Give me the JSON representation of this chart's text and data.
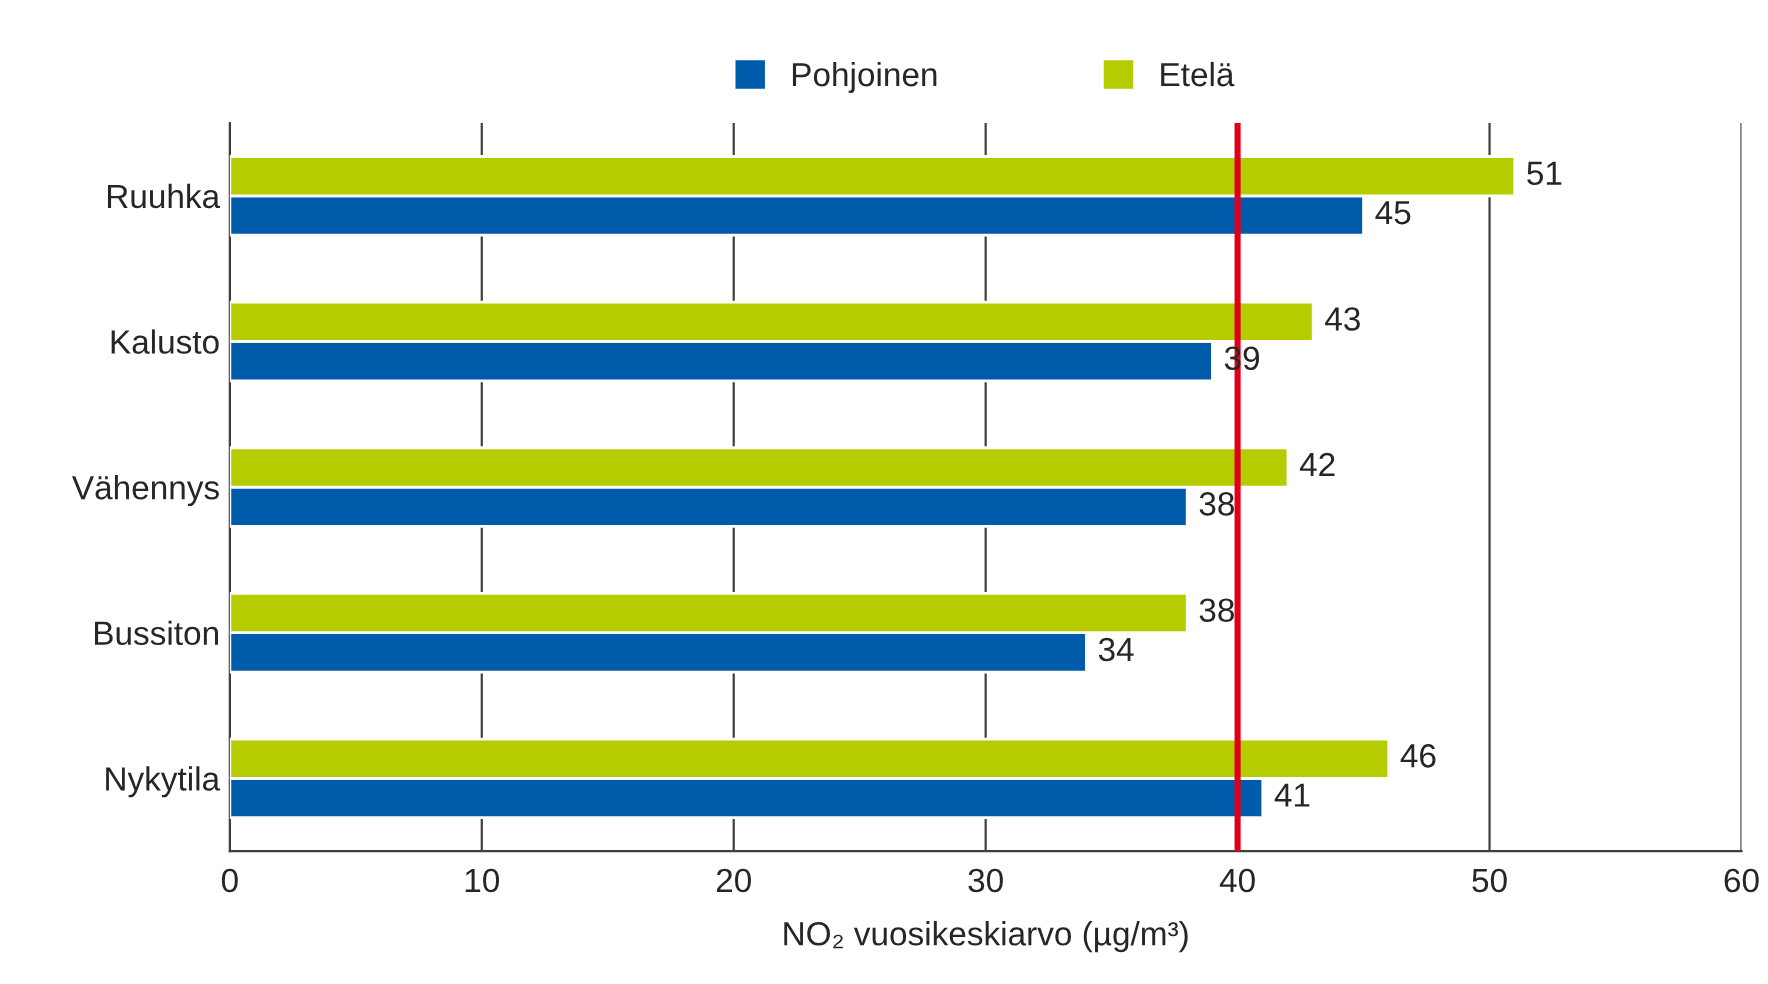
{
  "chart_data": {
    "type": "bar",
    "orientation": "horizontal",
    "xlabel": "NO₂ vuosikeskiarvo (µg/m³)",
    "categories": [
      "Ruuhka",
      "Kalusto",
      "Vähennys",
      "Bussiton",
      "Nykytila"
    ],
    "series": [
      {
        "name": "Pohjoinen",
        "color": "#005baa",
        "values": [
          45,
          39,
          38,
          34,
          41
        ]
      },
      {
        "name": "Etelä",
        "color": "#b5cc00",
        "values": [
          51,
          43,
          42,
          38,
          46
        ]
      }
    ],
    "xlim": [
      0,
      60
    ],
    "xticks": [
      0,
      10,
      20,
      30,
      40,
      50,
      60
    ],
    "ref_lines": [
      {
        "axis": "x",
        "value": 40,
        "color": "#e0001b"
      }
    ],
    "grid": "x",
    "legend": "top",
    "data_labels": true
  }
}
